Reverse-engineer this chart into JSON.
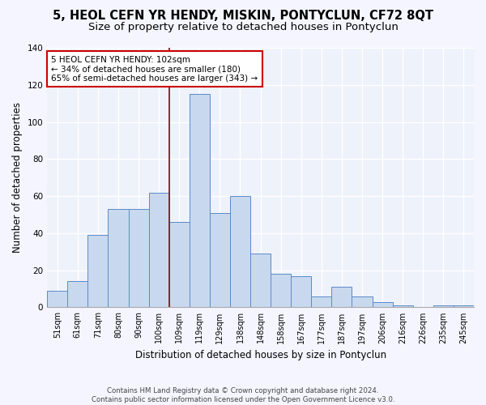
{
  "title": "5, HEOL CEFN YR HENDY, MISKIN, PONTYCLUN, CF72 8QT",
  "subtitle": "Size of property relative to detached houses in Pontyclun",
  "xlabel": "Distribution of detached houses by size in Pontyclun",
  "ylabel": "Number of detached properties",
  "categories": [
    "51sqm",
    "61sqm",
    "71sqm",
    "80sqm",
    "90sqm",
    "100sqm",
    "109sqm",
    "119sqm",
    "129sqm",
    "138sqm",
    "148sqm",
    "158sqm",
    "167sqm",
    "177sqm",
    "187sqm",
    "197sqm",
    "206sqm",
    "216sqm",
    "226sqm",
    "235sqm",
    "245sqm"
  ],
  "values": [
    9,
    14,
    39,
    53,
    53,
    62,
    46,
    115,
    51,
    60,
    29,
    18,
    17,
    6,
    11,
    6,
    3,
    1,
    0,
    1,
    1
  ],
  "bar_color": "#c8d9ef",
  "bar_edge_color": "#5b8ac8",
  "vline_x": 5.5,
  "vline_color": "#8b1a1a",
  "annotation_line1": "5 HEOL CEFN YR HENDY: 102sqm",
  "annotation_line2": "← 34% of detached houses are smaller (180)",
  "annotation_line3": "65% of semi-detached houses are larger (343) →",
  "annotation_box_color": "#ffffff",
  "annotation_box_edge": "#cc0000",
  "ylim": [
    0,
    140
  ],
  "yticks": [
    0,
    20,
    40,
    60,
    80,
    100,
    120,
    140
  ],
  "footnote_full": "Contains HM Land Registry data © Crown copyright and database right 2024.\nContains public sector information licensed under the Open Government Licence v3.0.",
  "bg_color": "#eef2fb",
  "grid_color": "#ffffff",
  "title_fontsize": 10.5,
  "subtitle_fontsize": 9.5,
  "tick_fontsize": 7,
  "ylabel_fontsize": 8.5,
  "xlabel_fontsize": 8.5
}
